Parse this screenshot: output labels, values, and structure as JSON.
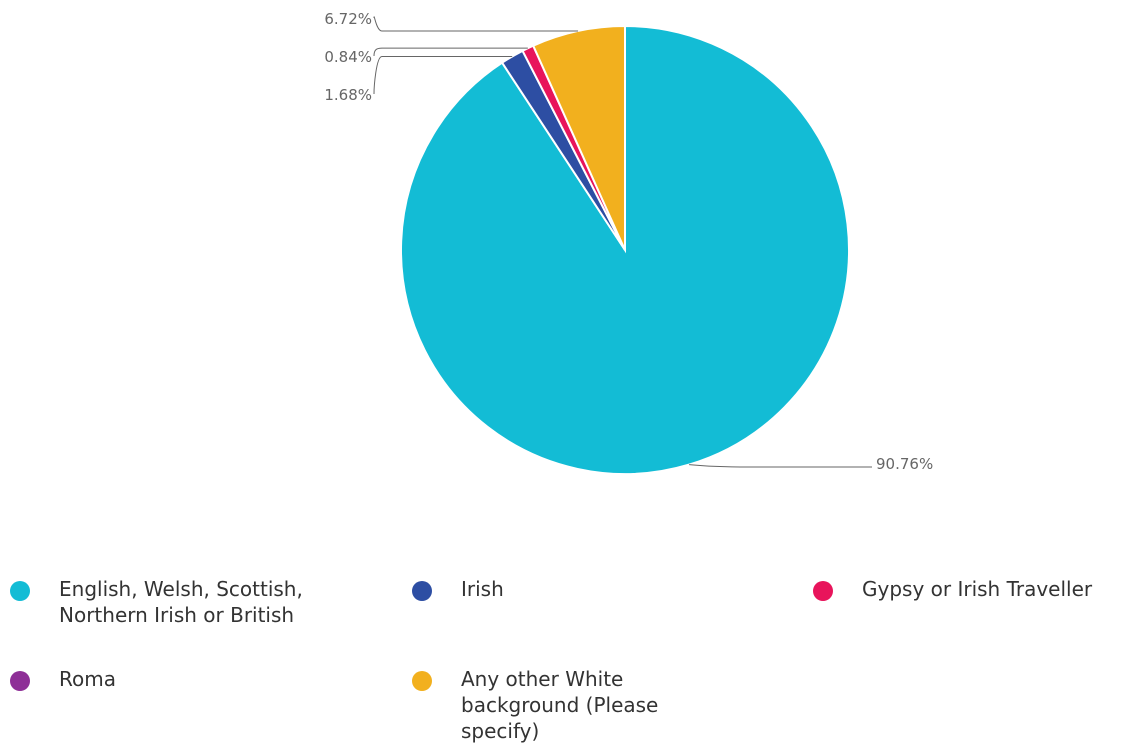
{
  "chart_data": {
    "type": "pie",
    "categories": [
      "English, Welsh, Scottish, Northern Irish or British",
      "Irish",
      "Gypsy or Irish Traveller",
      "Roma",
      "Any other White background (Please specify)"
    ],
    "values": [
      90.76,
      1.68,
      0.84,
      0,
      6.72
    ],
    "value_labels": [
      "90.76%",
      "1.68%",
      "0.84%",
      "",
      "6.72%"
    ],
    "colors": [
      "#13bcd5",
      "#2d4ea3",
      "#e8145b",
      "#8e2f97",
      "#f2b01e"
    ],
    "legend_position": "bottom",
    "title": ""
  }
}
